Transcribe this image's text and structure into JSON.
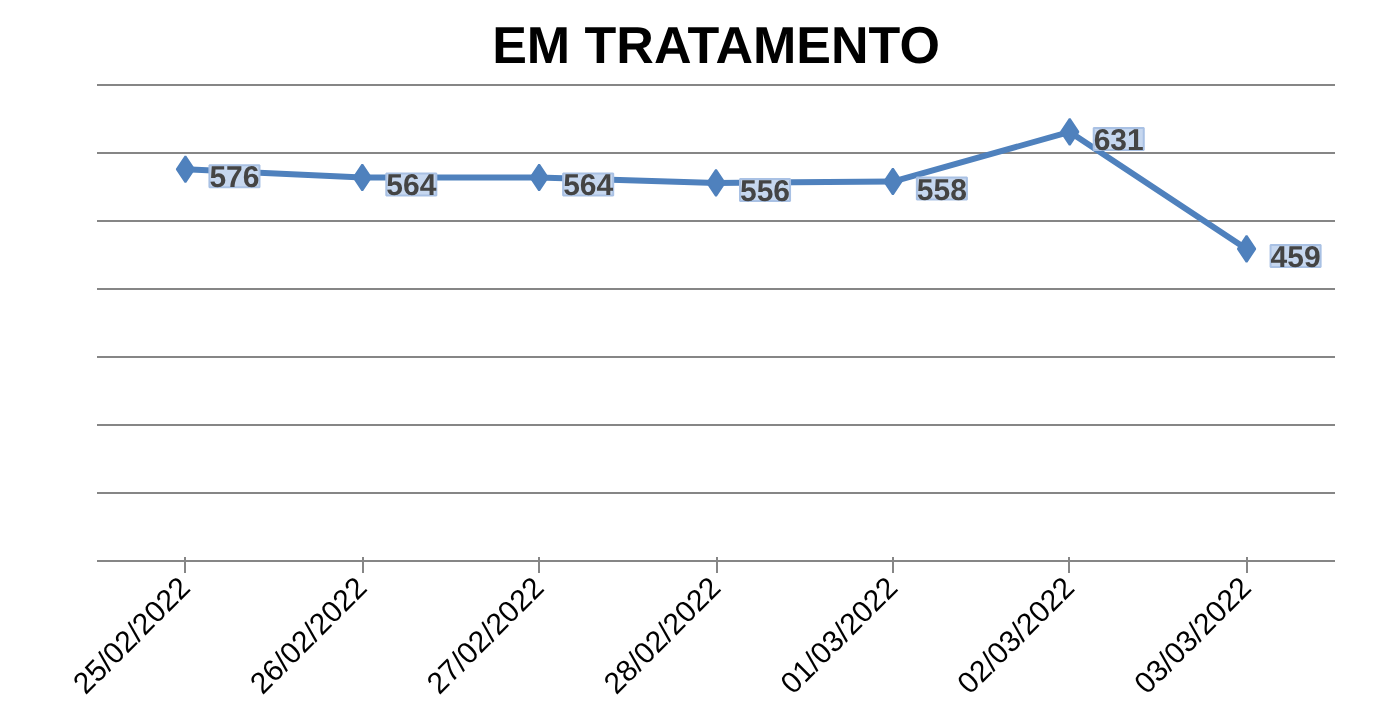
{
  "chart_data": {
    "type": "line",
    "title": "EM TRATAMENTO",
    "categories": [
      "25/02/2022",
      "26/02/2022",
      "27/02/2022",
      "28/02/2022",
      "01/03/2022",
      "02/03/2022",
      "03/03/2022"
    ],
    "series": [
      {
        "color": "#4f81bd",
        "values": [
          576,
          564,
          564,
          556,
          558,
          631,
          459
        ]
      }
    ],
    "ylim": [
      0,
      700
    ],
    "yticks": [
      {
        "value": 0,
        "label": null
      },
      {
        "value": 100,
        "label": null
      },
      {
        "value": 200,
        "label": null
      },
      {
        "value": 300,
        "label": null
      },
      {
        "value": 400,
        "label": null
      },
      {
        "value": 500,
        "label": null
      },
      {
        "value": 600,
        "label": null
      },
      {
        "value": 700,
        "label": null
      }
    ],
    "tick_labels": "x",
    "grid": "y",
    "marker": "diamond",
    "line_style": "solid",
    "data_labels": true
  }
}
